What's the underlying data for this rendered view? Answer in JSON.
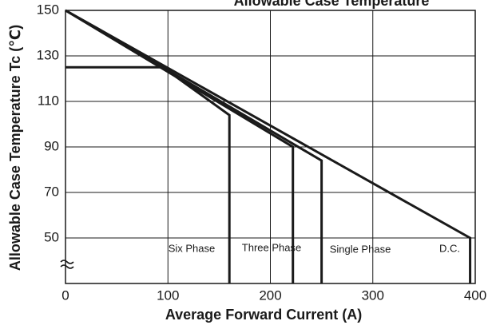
{
  "chart_data": {
    "type": "line",
    "title": "Allowable Case Temperature",
    "x_label": "Average Forward Current (A)",
    "y_label": "Allowable Case Temperature Tc (℃)",
    "xlim": [
      0,
      400
    ],
    "ylim": [
      30,
      150
    ],
    "xticks": [
      0,
      100,
      200,
      300,
      400
    ],
    "yticks": [
      50,
      70,
      90,
      110,
      130,
      150
    ],
    "grid": true,
    "series": [
      {
        "name": "Six Phase",
        "color": "#1a1a1a",
        "x": [
          0,
          95,
          160,
          160
        ],
        "values": [
          125,
          125,
          104,
          30
        ]
      },
      {
        "name": "Three Phase",
        "color": "#1a1a1a",
        "x": [
          0,
          222,
          222
        ],
        "values": [
          150,
          90,
          30
        ]
      },
      {
        "name": "Single Phase",
        "color": "#1a1a1a",
        "x": [
          0,
          250,
          250
        ],
        "values": [
          150,
          84,
          30
        ]
      },
      {
        "name": "D.C.",
        "color": "#1a1a1a",
        "x": [
          0,
          395,
          395
        ],
        "values": [
          150,
          50,
          30
        ]
      }
    ]
  }
}
